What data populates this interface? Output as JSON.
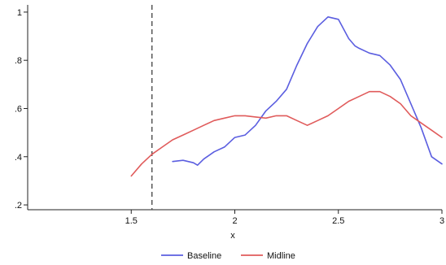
{
  "chart_data": {
    "type": "line",
    "title": "",
    "xlabel": "x",
    "ylabel": "",
    "xlim": [
      1.0,
      3.0
    ],
    "ylim": [
      0.18,
      1.03
    ],
    "x_ticks": [
      {
        "value": 1.5,
        "label": "1.5"
      },
      {
        "value": 2,
        "label": "2"
      },
      {
        "value": 2.5,
        "label": "2.5"
      },
      {
        "value": 3,
        "label": "3"
      }
    ],
    "y_ticks": [
      {
        "value": 0.2,
        "label": ".2"
      },
      {
        "value": 0.4,
        "label": ".4"
      },
      {
        "value": 0.6,
        "label": ".6"
      },
      {
        "value": 0.8,
        "label": ".8"
      },
      {
        "value": 1.0,
        "label": "1"
      }
    ],
    "grid": false,
    "legend_position": "bottom",
    "reference_line": {
      "x": 1.6,
      "style": "dashed",
      "color": "#555555"
    },
    "series": [
      {
        "name": "Baseline",
        "color": "#5b5ee0",
        "points": [
          [
            1.7,
            0.38
          ],
          [
            1.75,
            0.385
          ],
          [
            1.8,
            0.375
          ],
          [
            1.82,
            0.365
          ],
          [
            1.85,
            0.39
          ],
          [
            1.9,
            0.42
          ],
          [
            1.95,
            0.44
          ],
          [
            2.0,
            0.48
          ],
          [
            2.05,
            0.49
          ],
          [
            2.1,
            0.53
          ],
          [
            2.15,
            0.59
          ],
          [
            2.2,
            0.63
          ],
          [
            2.25,
            0.68
          ],
          [
            2.3,
            0.78
          ],
          [
            2.35,
            0.87
          ],
          [
            2.4,
            0.94
          ],
          [
            2.45,
            0.98
          ],
          [
            2.5,
            0.97
          ],
          [
            2.55,
            0.89
          ],
          [
            2.58,
            0.86
          ],
          [
            2.6,
            0.85
          ],
          [
            2.65,
            0.83
          ],
          [
            2.7,
            0.82
          ],
          [
            2.75,
            0.78
          ],
          [
            2.8,
            0.72
          ],
          [
            2.85,
            0.62
          ],
          [
            2.9,
            0.52
          ],
          [
            2.95,
            0.4
          ],
          [
            3.0,
            0.37
          ]
        ]
      },
      {
        "name": "Midline",
        "color": "#e05b5b",
        "points": [
          [
            1.5,
            0.32
          ],
          [
            1.55,
            0.37
          ],
          [
            1.6,
            0.41
          ],
          [
            1.65,
            0.44
          ],
          [
            1.7,
            0.47
          ],
          [
            1.75,
            0.49
          ],
          [
            1.8,
            0.51
          ],
          [
            1.85,
            0.53
          ],
          [
            1.9,
            0.55
          ],
          [
            1.95,
            0.56
          ],
          [
            2.0,
            0.57
          ],
          [
            2.05,
            0.57
          ],
          [
            2.1,
            0.565
          ],
          [
            2.15,
            0.56
          ],
          [
            2.2,
            0.57
          ],
          [
            2.25,
            0.57
          ],
          [
            2.3,
            0.55
          ],
          [
            2.35,
            0.53
          ],
          [
            2.4,
            0.55
          ],
          [
            2.45,
            0.57
          ],
          [
            2.5,
            0.6
          ],
          [
            2.55,
            0.63
          ],
          [
            2.6,
            0.65
          ],
          [
            2.65,
            0.67
          ],
          [
            2.7,
            0.67
          ],
          [
            2.75,
            0.65
          ],
          [
            2.8,
            0.62
          ],
          [
            2.85,
            0.57
          ],
          [
            2.9,
            0.54
          ],
          [
            2.95,
            0.51
          ],
          [
            3.0,
            0.48
          ]
        ]
      }
    ]
  }
}
